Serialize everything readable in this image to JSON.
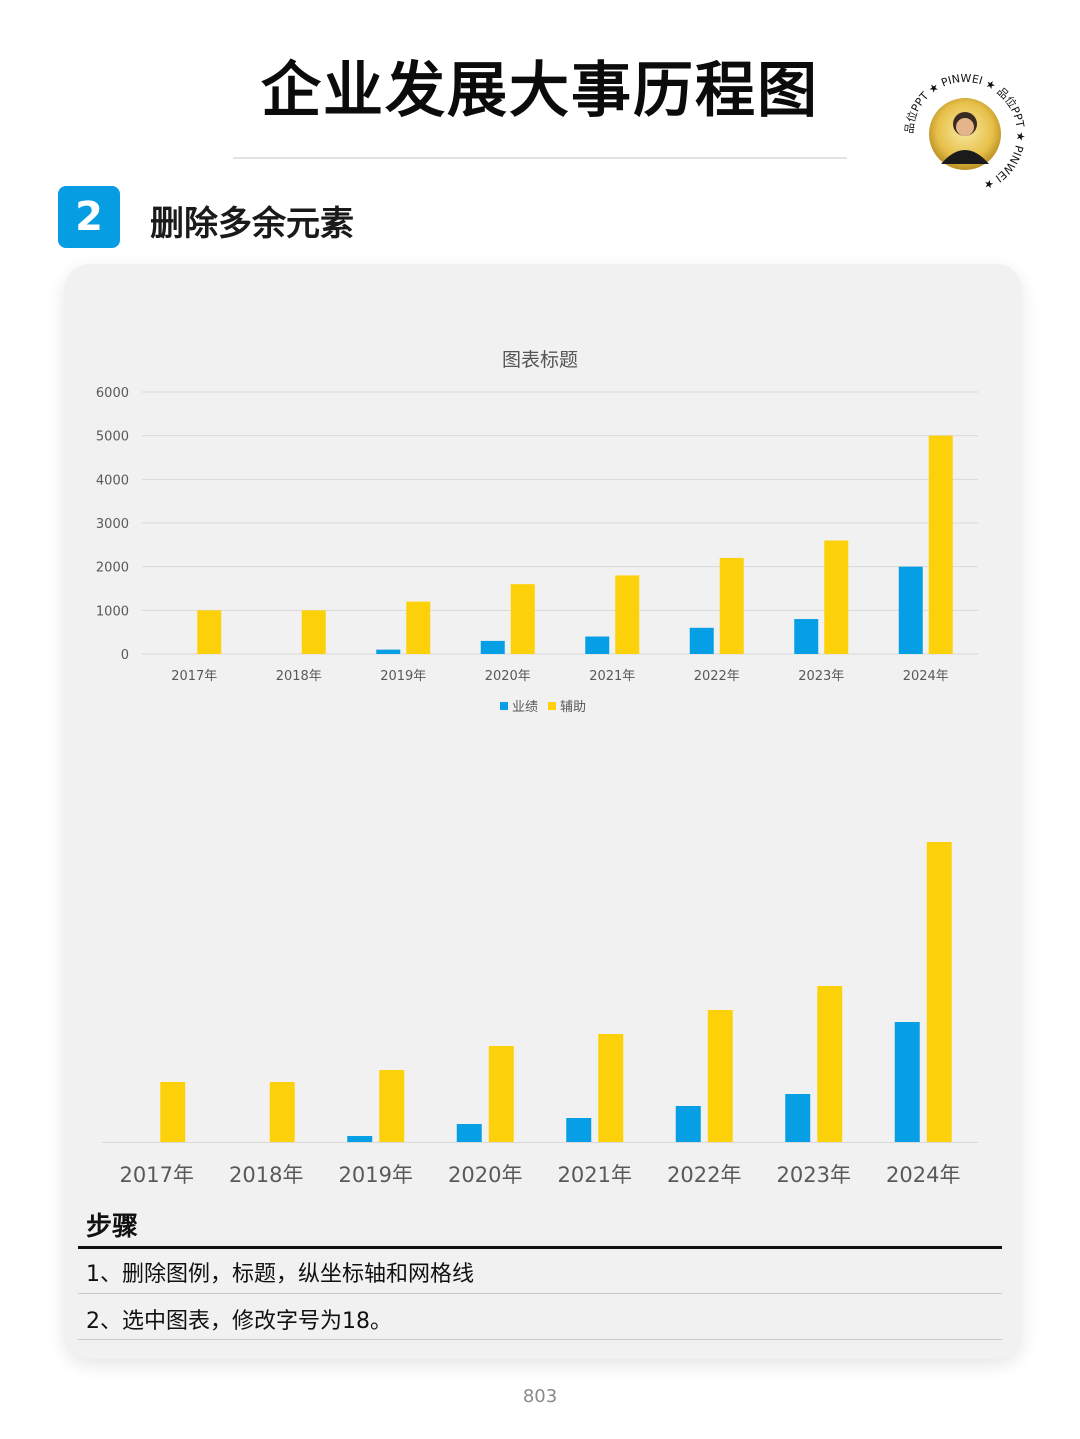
{
  "header": {
    "title": "企业发展大事历程图",
    "seal_text": "品位PPT ★ PINWEI ★ 品位PPT ★ PINWEI ★"
  },
  "section": {
    "number": "2",
    "heading": "删除多余元素"
  },
  "colors": {
    "accent_blue": "#079de3",
    "bar_blue": "#069fe5",
    "bar_yellow": "#fdd10a"
  },
  "chart_data": [
    {
      "type": "bar",
      "title": "图表标题",
      "categories": [
        "2017年",
        "2018年",
        "2019年",
        "2020年",
        "2021年",
        "2022年",
        "2023年",
        "2024年"
      ],
      "series": [
        {
          "name": "业绩",
          "values": [
            0,
            0,
            100,
            300,
            400,
            600,
            800,
            2000
          ]
        },
        {
          "name": "辅助",
          "values": [
            1000,
            1000,
            1200,
            1600,
            1800,
            2200,
            2600,
            5000
          ]
        }
      ],
      "ylim": [
        0,
        6000
      ],
      "yticks": [
        "0",
        "1000",
        "2000",
        "3000",
        "4000",
        "5000",
        "6000"
      ],
      "grid": true,
      "legend": "bottom"
    },
    {
      "type": "bar",
      "categories": [
        "2017年",
        "2018年",
        "2019年",
        "2020年",
        "2021年",
        "2022年",
        "2023年",
        "2024年"
      ],
      "series": [
        {
          "values": [
            0,
            0,
            100,
            300,
            400,
            600,
            800,
            2000
          ]
        },
        {
          "values": [
            1000,
            1000,
            1200,
            1600,
            1800,
            2200,
            2600,
            5000
          ]
        }
      ],
      "ylim": [
        0,
        5000
      ],
      "grid": false,
      "legend": "none"
    }
  ],
  "steps": {
    "title": "步骤",
    "items": [
      "1、删除图例，标题，纵坐标轴和网格线",
      "2、选中图表，修改字号为18。"
    ]
  },
  "footer": {
    "page_number": "803"
  }
}
